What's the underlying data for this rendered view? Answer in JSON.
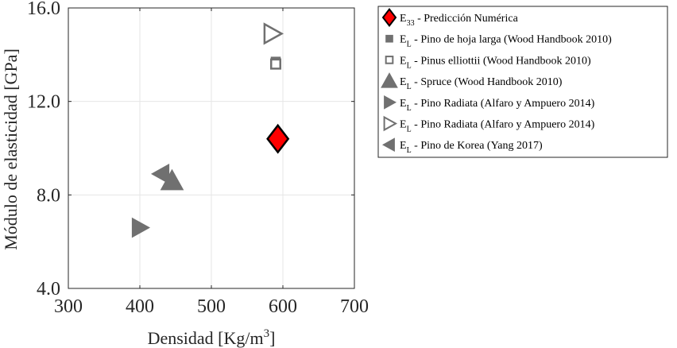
{
  "chart_data": {
    "type": "scatter",
    "xlabel": "Densidad [Kg/m",
    "xlabel_sup": "3",
    "xlabel_end": "]",
    "ylabel": "Módulo de elasticidad [GPa]",
    "xlim": [
      300,
      700
    ],
    "ylim": [
      4.0,
      16.0
    ],
    "xticks": [
      300,
      400,
      500,
      600,
      700
    ],
    "yticks": [
      4.0,
      8.0,
      12.0,
      16.0
    ],
    "xtick_labels": [
      "300",
      "400",
      "500",
      "600",
      "700"
    ],
    "ytick_labels": [
      "4.0",
      "8.0",
      "12.0",
      "16.0"
    ],
    "grid": true,
    "legend_position": "outside-right",
    "series": [
      {
        "name_main": "E",
        "name_sub": "33",
        "name_rest": " - Predicción Numérica",
        "marker": "diamond",
        "fill": "#ff0000",
        "stroke": "#000000",
        "points": [
          [
            593,
            10.4
          ]
        ]
      },
      {
        "name_main": "E",
        "name_sub": "L",
        "name_rest": " - Pino de hoja larga (Wood Handbook 2010)",
        "marker": "square",
        "fill": "#707070",
        "stroke": "#707070",
        "points": [
          [
            590,
            13.7
          ]
        ]
      },
      {
        "name_main": "E",
        "name_sub": "L",
        "name_rest": " - Pinus elliottii (Wood Handbook 2010)",
        "marker": "square",
        "fill": "none",
        "stroke": "#707070",
        "points": [
          [
            590,
            13.6
          ]
        ]
      },
      {
        "name_main": "E",
        "name_sub": "L",
        "name_rest": " - Spruce (Wood Handbook 2010)",
        "marker": "triangle-up",
        "fill": "#707070",
        "stroke": "#707070",
        "points": [
          [
            445,
            8.6
          ]
        ]
      },
      {
        "name_main": "E",
        "name_sub": "L",
        "name_rest": " - Pino Radiata (Alfaro y Ampuero 2014)",
        "marker": "triangle-right",
        "fill": "#707070",
        "stroke": "#707070",
        "points": [
          [
            400,
            6.6
          ]
        ]
      },
      {
        "name_main": "E",
        "name_sub": "L",
        "name_rest": " - Pino Radiata (Alfaro y Ampuero 2014)",
        "marker": "triangle-right",
        "fill": "none",
        "stroke": "#707070",
        "points": [
          [
            585,
            14.9
          ]
        ]
      },
      {
        "name_main": "E",
        "name_sub": "L",
        "name_rest": " - Pino de Korea (Yang 2017)",
        "marker": "triangle-left",
        "fill": "#707070",
        "stroke": "#707070",
        "points": [
          [
            430,
            8.9
          ]
        ]
      }
    ]
  }
}
